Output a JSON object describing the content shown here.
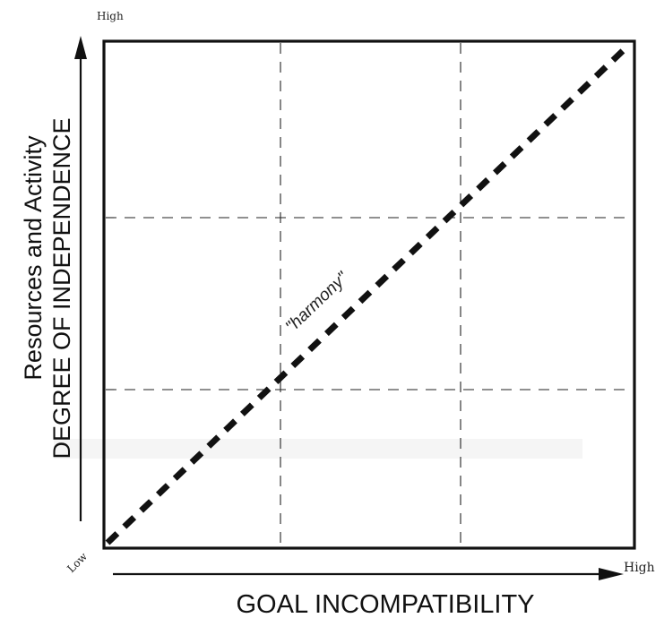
{
  "labels": {
    "y_high": "High",
    "y_line1": "Resources and Activity",
    "y_line2": "DEGREE OF INDEPENDENCE",
    "origin_low": "Low",
    "x_high": "High",
    "x_title": "GOAL INCOMPATIBILITY",
    "diagonal": "\"harmony\""
  },
  "grid": {
    "columns": 3,
    "rows": 3,
    "divider_style": "dashed"
  },
  "diagonal": {
    "from": "low-low corner",
    "to": "high-high corner",
    "style": "heavy dashed"
  },
  "colors": {
    "ink": "#111111",
    "paper": "#ffffff"
  }
}
